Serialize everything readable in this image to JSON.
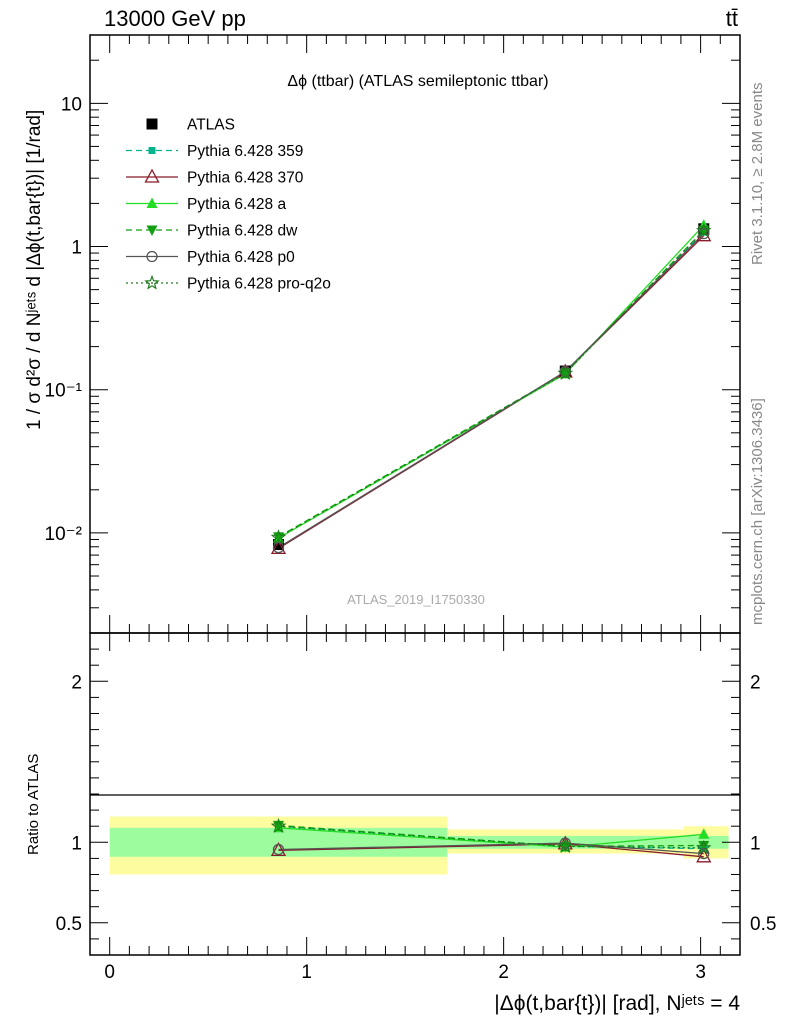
{
  "header": {
    "energy_label": "13000 GeV pp",
    "process_label": "tt̄"
  },
  "side_text": {
    "rivet": "Rivet 3.1.10, ≥ 2.8M events",
    "mcplots": "mcplots.cern.ch [arXiv:1306.3436]"
  },
  "colors": {
    "atlas": "#000000",
    "p359": "#00b38f",
    "p370": "#8b1a2a",
    "pa": "#22dd22",
    "pdw": "#12a012",
    "pp0": "#555555",
    "pq2o": "#1f7a1f",
    "band_inner": "#9dfc9d",
    "band_outer": "#fdfda0"
  },
  "chart_data": [
    {
      "type": "line",
      "title": "Δϕ (ttbar) (ATLAS semileptonic ttbar)",
      "ylabel": "1 / σ d²σ / d Nʲᵉᵗˢ d |Δϕ(t,bar{t})| [1/rad]",
      "xlabel": "",
      "watermark": "ATLAS_2019_I1750330",
      "y_scale": "log",
      "xlim": [
        -0.1,
        3.2
      ],
      "ylim": [
        0.002,
        30
      ],
      "y_ticks": [
        {
          "v": 0.01,
          "label": "10⁻²"
        },
        {
          "v": 0.1,
          "label": "10⁻¹"
        },
        {
          "v": 1,
          "label": "1"
        },
        {
          "v": 10,
          "label": "10"
        }
      ],
      "legend_position": "top-left",
      "series": [
        {
          "name": "ATLAS",
          "key": "atlas",
          "x": [
            0.857,
            2.313,
            3.016
          ],
          "y": [
            0.0083,
            0.135,
            1.33
          ]
        },
        {
          "name": "Pythia 6.428 359",
          "key": "p359",
          "x": [
            0.857,
            2.313,
            3.016
          ],
          "y": [
            0.0093,
            0.131,
            1.26
          ]
        },
        {
          "name": "Pythia 6.428 370",
          "key": "p370",
          "x": [
            0.857,
            2.313,
            3.016
          ],
          "y": [
            0.0078,
            0.133,
            1.19
          ]
        },
        {
          "name": "Pythia 6.428 a",
          "key": "pa",
          "x": [
            0.857,
            2.313,
            3.016
          ],
          "y": [
            0.0092,
            0.129,
            1.41
          ]
        },
        {
          "name": "Pythia 6.428 dw",
          "key": "pdw",
          "x": [
            0.857,
            2.313,
            3.016
          ],
          "y": [
            0.0094,
            0.131,
            1.3
          ]
        },
        {
          "name": "Pythia 6.428 p0",
          "key": "pp0",
          "x": [
            0.857,
            2.313,
            3.016
          ],
          "y": [
            0.0079,
            0.134,
            1.23
          ]
        },
        {
          "name": "Pythia 6.428 pro-q2o",
          "key": "pq2o",
          "x": [
            0.857,
            2.313,
            3.016
          ],
          "y": [
            0.0093,
            0.13,
            1.29
          ]
        }
      ]
    },
    {
      "type": "line",
      "ylabel": "Ratio to ATLAS",
      "xlabel": "|Δϕ(t,bar{t})| [rad], Nʲᵉᵗˢ = 4",
      "xlim": [
        -0.1,
        3.2
      ],
      "ylim": [
        0.3,
        2.3
      ],
      "x_ticks": [
        0,
        1,
        2,
        3
      ],
      "y_ticks": [
        0.5,
        1,
        2
      ],
      "bands": [
        {
          "x0": 0.0,
          "x1": 1.714,
          "inner": [
            0.91,
            1.09
          ],
          "outer": [
            0.8,
            1.16
          ]
        },
        {
          "x0": 1.714,
          "x1": 2.913,
          "inner": [
            0.96,
            1.04
          ],
          "outer": [
            0.93,
            1.08
          ]
        },
        {
          "x0": 2.913,
          "x1": 3.142,
          "inner": [
            0.96,
            1.04
          ],
          "outer": [
            0.9,
            1.1
          ]
        }
      ],
      "series": [
        {
          "name": "Pythia 6.428 359",
          "key": "p359",
          "x": [
            0.857,
            2.313,
            3.016
          ],
          "y": [
            1.1,
            0.975,
            0.96
          ]
        },
        {
          "name": "Pythia 6.428 370",
          "key": "p370",
          "x": [
            0.857,
            2.313,
            3.016
          ],
          "y": [
            0.95,
            0.99,
            0.91
          ]
        },
        {
          "name": "Pythia 6.428 a",
          "key": "pa",
          "x": [
            0.857,
            2.313,
            3.016
          ],
          "y": [
            1.09,
            0.97,
            1.05
          ]
        },
        {
          "name": "Pythia 6.428 dw",
          "key": "pdw",
          "x": [
            0.857,
            2.313,
            3.016
          ],
          "y": [
            1.105,
            0.975,
            0.98
          ]
        },
        {
          "name": "Pythia 6.428 p0",
          "key": "pp0",
          "x": [
            0.857,
            2.313,
            3.016
          ],
          "y": [
            0.955,
            0.995,
            0.93
          ]
        },
        {
          "name": "Pythia 6.428 pro-q2o",
          "key": "pq2o",
          "x": [
            0.857,
            2.313,
            3.016
          ],
          "y": [
            1.1,
            0.975,
            0.965
          ]
        }
      ]
    }
  ]
}
